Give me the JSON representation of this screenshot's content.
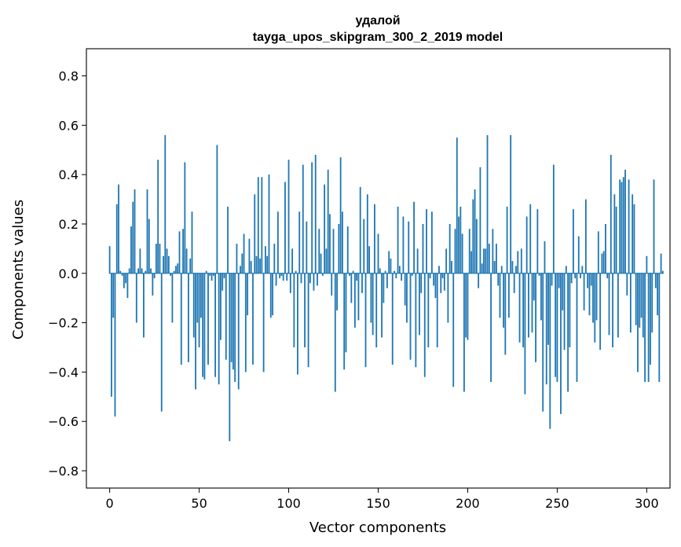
{
  "chart_data": {
    "type": "bar",
    "title_line1": "удалой",
    "title_line2": "tayga_upos_skipgram_300_2_2019 model",
    "xlabel": "Vector components",
    "ylabel": "Components values",
    "xlim": [
      -13,
      313
    ],
    "ylim": [
      -0.87,
      0.91
    ],
    "xticks": [
      0,
      50,
      100,
      150,
      200,
      250,
      300
    ],
    "xtick_labels": [
      "0",
      "50",
      "100",
      "150",
      "200",
      "250",
      "300"
    ],
    "yticks": [
      -0.8,
      -0.6,
      -0.4,
      -0.2,
      0.0,
      0.2,
      0.4,
      0.6,
      0.8
    ],
    "ytick_labels": [
      "−0.8",
      "−0.6",
      "−0.4",
      "−0.2",
      "0.0",
      "0.2",
      "0.4",
      "0.6",
      "0.8"
    ],
    "bar_color": "#1f77b4",
    "grid": false,
    "values": [
      0.11,
      -0.5,
      -0.18,
      -0.58,
      0.28,
      0.36,
      0.01,
      -0.01,
      -0.06,
      -0.04,
      -0.1,
      0.02,
      0.19,
      0.29,
      0.34,
      -0.2,
      0.02,
      0.1,
      0.02,
      -0.26,
      0.01,
      0.34,
      0.22,
      0.02,
      -0.09,
      -0.02,
      0.12,
      0.46,
      0.12,
      -0.56,
      0.07,
      0.56,
      0.1,
      0.07,
      -0.01,
      -0.2,
      0.01,
      0.03,
      0.04,
      0.17,
      -0.37,
      0.18,
      0.45,
      0.1,
      -0.36,
      0.06,
      0.25,
      -0.26,
      -0.47,
      -0.2,
      -0.3,
      -0.18,
      -0.42,
      -0.43,
      0.01,
      -0.37,
      -0.01,
      -0.03,
      -0.01,
      -0.42,
      0.52,
      -0.45,
      -0.27,
      -0.07,
      -0.02,
      -0.35,
      0.27,
      -0.68,
      -0.36,
      -0.39,
      -0.44,
      0.12,
      -0.47,
      0.03,
      0.08,
      0.16,
      -0.4,
      -0.17,
      0.14,
      0.05,
      -0.37,
      0.32,
      0.07,
      0.39,
      0.06,
      0.39,
      -0.4,
      0.11,
      0.07,
      0.4,
      -0.18,
      -0.17,
      0.12,
      -0.05,
      0.25,
      -0.02,
      -0.01,
      -0.03,
      0.37,
      -0.03,
      0.46,
      -0.08,
      0.1,
      -0.3,
      0.01,
      -0.41,
      0.25,
      -0.04,
      0.44,
      -0.3,
      0.21,
      -0.38,
      -0.04,
      0.45,
      -0.07,
      0.48,
      -0.05,
      0.18,
      0.08,
      -0.01,
      0.36,
      0.1,
      0.42,
      0.24,
      -0.09,
      0.18,
      -0.48,
      -0.15,
      0.2,
      0.47,
      0.25,
      -0.39,
      -0.32,
      0.19,
      -0.01,
      -0.12,
      0.01,
      -0.22,
      -0.03,
      -0.19,
      0.35,
      -0.08,
      0.22,
      -0.38,
      0.32,
      0.11,
      -0.2,
      -0.25,
      0.28,
      -0.3,
      0.16,
      0.02,
      -0.26,
      -0.12,
      0.01,
      -0.06,
      0.09,
      0.06,
      -0.37,
      0.01,
      -0.02,
      0.27,
      0.03,
      -0.03,
      0.23,
      -0.13,
      -0.2,
      0.21,
      -0.35,
      -0.01,
      0.29,
      -0.38,
      0.1,
      -0.25,
      -0.08,
      0.2,
      -0.42,
      0.26,
      -0.3,
      -0.02,
      0.25,
      -0.05,
      -0.1,
      -0.3,
      0.03,
      -0.08,
      -0.02,
      -0.07,
      0.1,
      -0.2,
      0.2,
      0.05,
      -0.46,
      0.18,
      0.55,
      0.23,
      0.27,
      0.16,
      -0.48,
      -0.26,
      -0.27,
      0.18,
      0.09,
      0.3,
      0.34,
      0.22,
      -0.06,
      0.43,
      0.04,
      0.1,
      0.1,
      0.56,
      0.12,
      -0.44,
      0.18,
      0.05,
      0.12,
      -0.05,
      -0.18,
      0.03,
      -0.22,
      -0.33,
      0.27,
      -0.18,
      0.56,
      0.05,
      -0.08,
      0.03,
      0.09,
      -0.28,
      0.1,
      -0.3,
      -0.49,
      0.23,
      -0.26,
      0.28,
      -0.24,
      -0.11,
      -0.36,
      0.26,
      -0.01,
      -0.19,
      -0.56,
      0.13,
      -0.45,
      -0.29,
      -0.63,
      -0.05,
      0.44,
      -0.42,
      -0.44,
      -0.06,
      -0.57,
      -0.15,
      -0.31,
      0.03,
      -0.48,
      -0.3,
      -0.04,
      0.26,
      -0.02,
      -0.44,
      0.15,
      -0.02,
      0.03,
      -0.15,
      0.3,
      -0.06,
      -0.17,
      -0.05,
      -0.2,
      -0.28,
      -0.19,
      0.17,
      -0.31,
      0.08,
      0.09,
      0.2,
      -0.02,
      -0.25,
      0.48,
      -0.3,
      0.32,
      0.27,
      -0.26,
      0.38,
      0.37,
      0.39,
      0.42,
      -0.09,
      0.38,
      -0.24,
      0.32,
      0.28,
      -0.21,
      -0.4,
      -0.22,
      -0.18,
      -0.26,
      -0.44,
      0.07,
      -0.44,
      -0.37,
      -0.24,
      0.38,
      -0.06,
      -0.17,
      -0.44,
      0.08,
      0.01
    ]
  }
}
